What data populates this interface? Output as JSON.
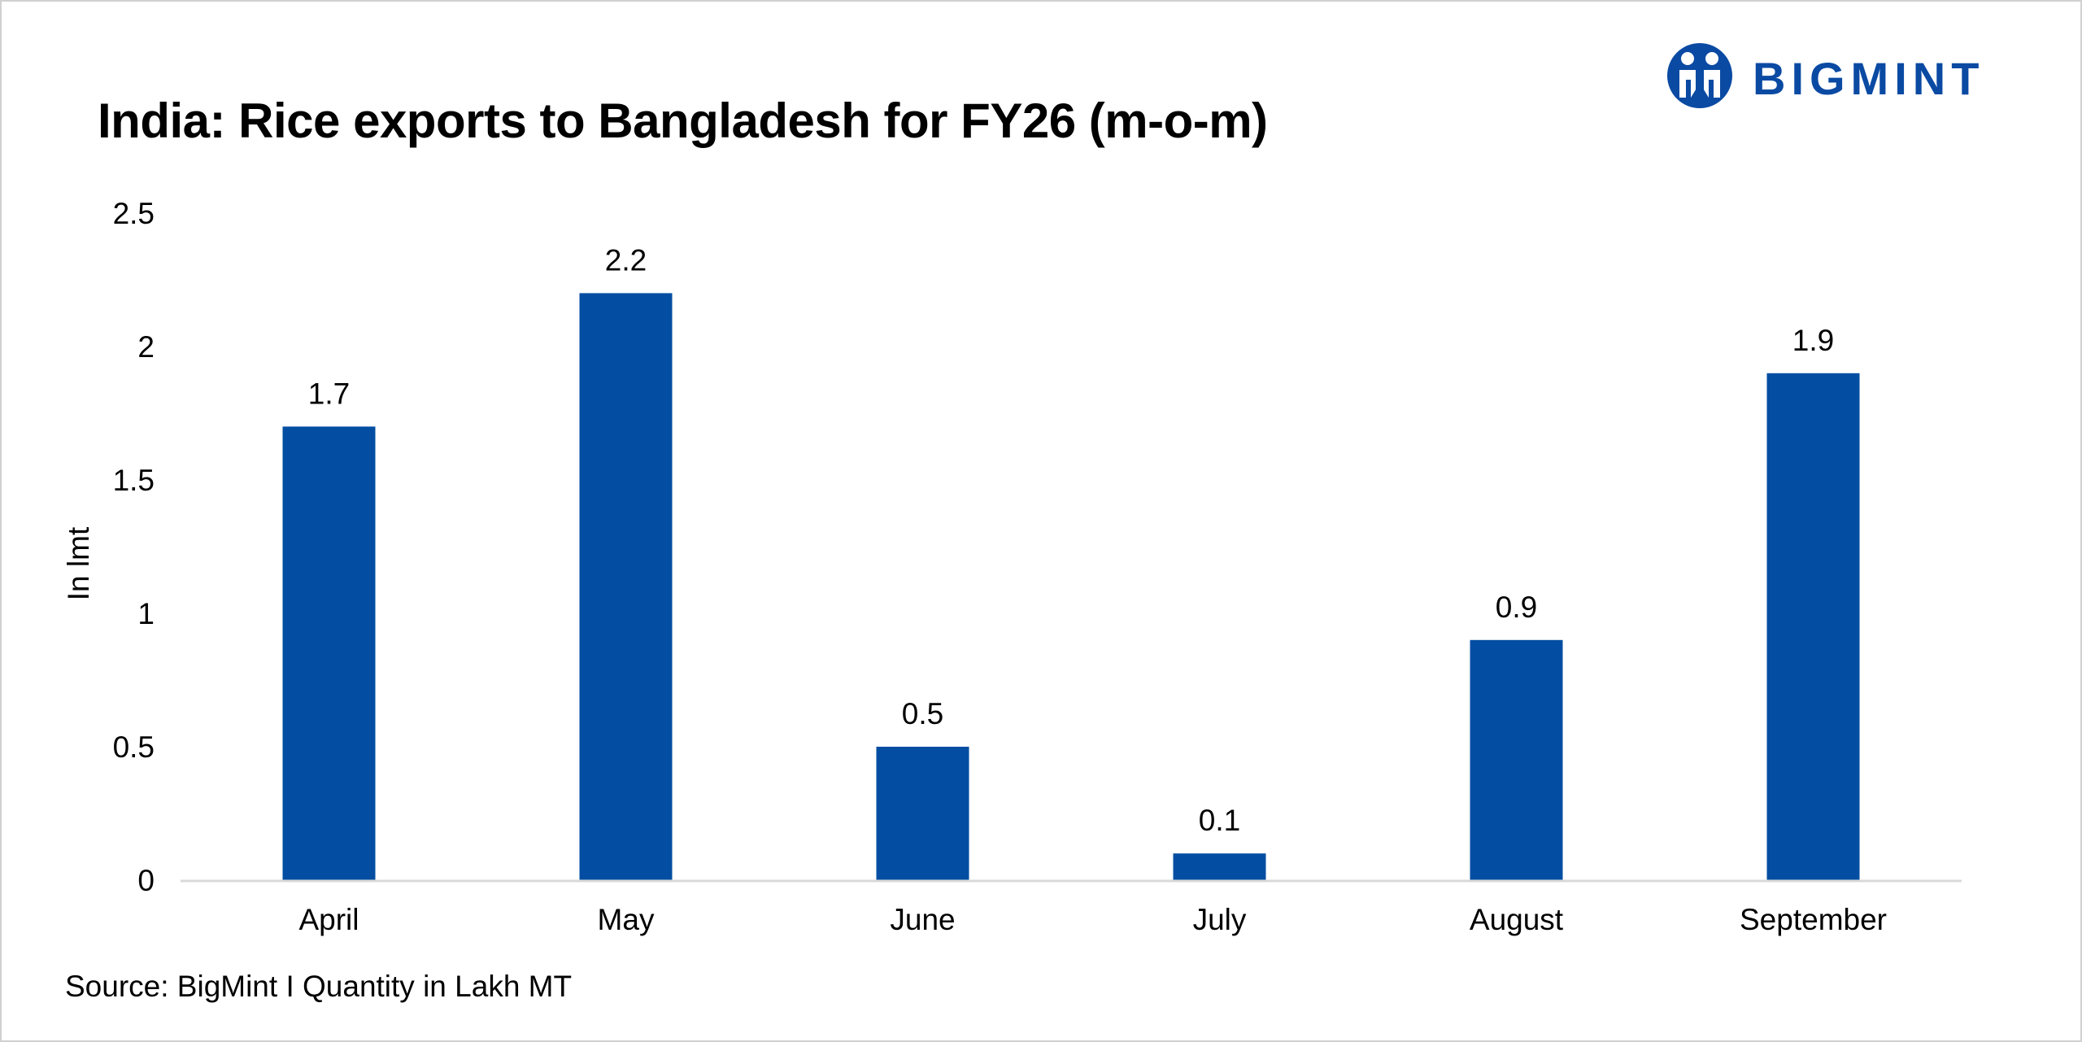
{
  "title": "India: Rice exports to Bangladesh for FY26 (m-o-m)",
  "logo": {
    "text": "BIGMINT",
    "icon": "bigmint-logo-icon",
    "color": "#0a4aa3"
  },
  "source": "Source: BigMint I Quantity in Lakh MT",
  "colors": {
    "bar": "#034ea2",
    "axis": "#d9d9d9"
  },
  "chart_data": {
    "type": "bar",
    "categories": [
      "April",
      "May",
      "June",
      "July",
      "August",
      "September"
    ],
    "values": [
      1.7,
      2.2,
      0.5,
      0.1,
      0.9,
      1.9
    ],
    "data_labels": [
      "1.7",
      "2.2",
      "0.5",
      "0.1",
      "0.9",
      "1.9"
    ],
    "title": "India: Rice exports to Bangladesh for FY26 (m-o-m)",
    "xlabel": "",
    "ylabel": "In lmt",
    "ylim": [
      0,
      2.5
    ],
    "yticks": [
      0,
      0.5,
      1,
      1.5,
      2,
      2.5
    ],
    "ytick_labels": [
      "0",
      "0.5",
      "1",
      "1.5",
      "2",
      "2.5"
    ],
    "grid": false,
    "legend": "none"
  }
}
